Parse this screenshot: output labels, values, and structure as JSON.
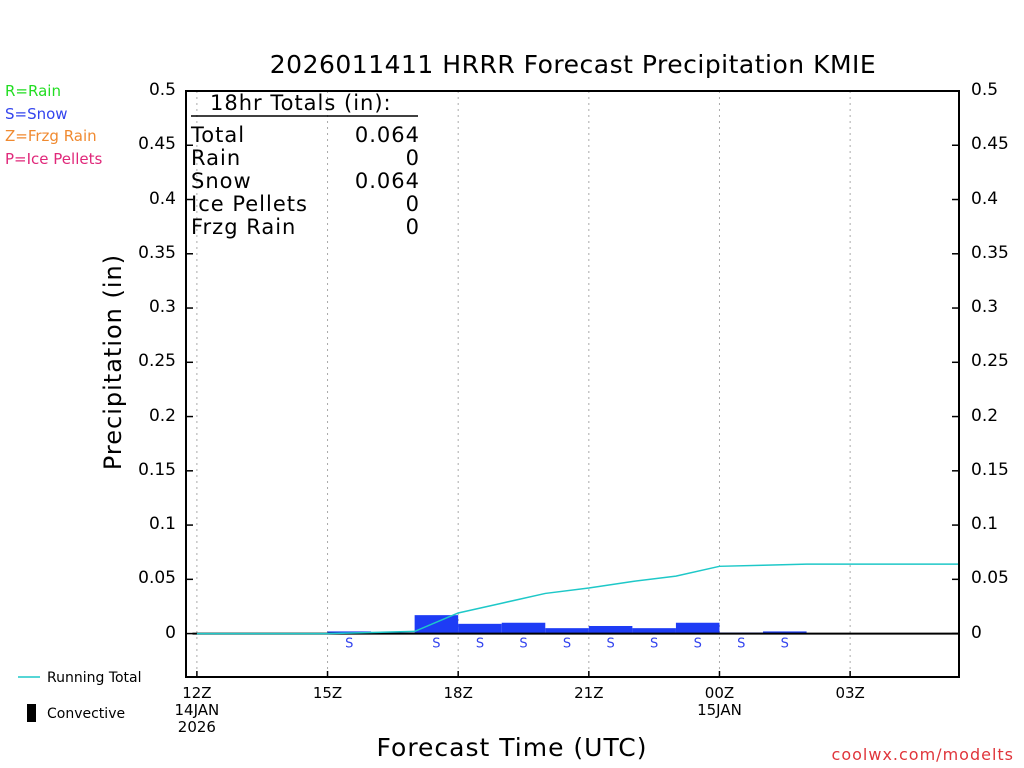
{
  "title": "2026011411 HRRR Forecast Precipitation KMIE",
  "type_legend": [
    {
      "label": "R=Rain",
      "color": "#22dd22"
    },
    {
      "label": "S=Snow",
      "color": "#3344ee"
    },
    {
      "label": "Z=Frzg Rain",
      "color": "#f08a30"
    },
    {
      "label": "P=Ice Pellets",
      "color": "#e0287a"
    }
  ],
  "totals": {
    "header": "18hr Totals (in):",
    "rows": [
      {
        "label": "Total",
        "value": "0.064"
      },
      {
        "label": "Rain",
        "value": "0"
      },
      {
        "label": "Snow",
        "value": "0.064"
      },
      {
        "label": "Ice Pellets",
        "value": "0"
      },
      {
        "label": "Frzg Rain",
        "value": "0"
      }
    ]
  },
  "bottom_legend": {
    "running_total": "Running Total",
    "convective": "Convective"
  },
  "credit": "coolwx.com/modelts",
  "colors": {
    "bar": "#1e3cf5",
    "running_total": "#1ec8c8",
    "precip_type_s": "#3344ee",
    "grid": "#aaaaaa",
    "credit": "#e0353b"
  },
  "chart_data": {
    "type": "bar",
    "title": "2026011411 HRRR Forecast Precipitation KMIE",
    "xlabel": "Forecast Time (UTC)",
    "ylabel": "Precipitation (in)",
    "ylim": [
      -0.04,
      0.5
    ],
    "xlim": [
      11.75,
      29.5
    ],
    "y_ticks": [
      "0",
      "0.05",
      "0.1",
      "0.15",
      "0.2",
      "0.25",
      "0.3",
      "0.35",
      "0.4",
      "0.45",
      "0.5"
    ],
    "x_ticks": [
      {
        "hour": 12,
        "lines": [
          "12Z",
          "14JAN",
          "2026"
        ]
      },
      {
        "hour": 15,
        "lines": [
          "15Z"
        ]
      },
      {
        "hour": 18,
        "lines": [
          "18Z"
        ]
      },
      {
        "hour": 21,
        "lines": [
          "21Z"
        ]
      },
      {
        "hour": 24,
        "lines": [
          "00Z",
          "15JAN"
        ]
      },
      {
        "hour": 27,
        "lines": [
          "03Z"
        ]
      }
    ],
    "grid": "vertical dotted at tick hours",
    "hourly_precip": [
      {
        "hour": 13,
        "value": 0
      },
      {
        "hour": 14,
        "value": 0
      },
      {
        "hour": 15,
        "value": 0
      },
      {
        "hour": 16,
        "value": 0.002,
        "ptype": "S"
      },
      {
        "hour": 17,
        "value": 0.001
      },
      {
        "hour": 18,
        "value": 0.017,
        "ptype": "S"
      },
      {
        "hour": 19,
        "value": 0.009,
        "ptype": "S"
      },
      {
        "hour": 20,
        "value": 0.01,
        "ptype": "S"
      },
      {
        "hour": 21,
        "value": 0.005,
        "ptype": "S"
      },
      {
        "hour": 22,
        "value": 0.007,
        "ptype": "S"
      },
      {
        "hour": 23,
        "value": 0.005,
        "ptype": "S"
      },
      {
        "hour": 24,
        "value": 0.01,
        "ptype": "S"
      },
      {
        "hour": 25,
        "value": 0.001,
        "ptype": "S"
      },
      {
        "hour": 26,
        "value": 0.002,
        "ptype": "S"
      },
      {
        "hour": 27,
        "value": 0
      },
      {
        "hour": 28,
        "value": 0
      },
      {
        "hour": 29,
        "value": 0
      }
    ],
    "running_total": {
      "x": [
        12,
        13,
        14,
        15,
        16,
        17,
        18,
        19,
        20,
        21,
        22,
        23,
        24,
        25,
        26,
        27,
        28,
        29,
        29.5
      ],
      "y": [
        0,
        0,
        0,
        0,
        0.001,
        0.002,
        0.019,
        0.028,
        0.037,
        0.042,
        0.048,
        0.053,
        0.062,
        0.063,
        0.064,
        0.064,
        0.064,
        0.064,
        0.064
      ]
    }
  }
}
